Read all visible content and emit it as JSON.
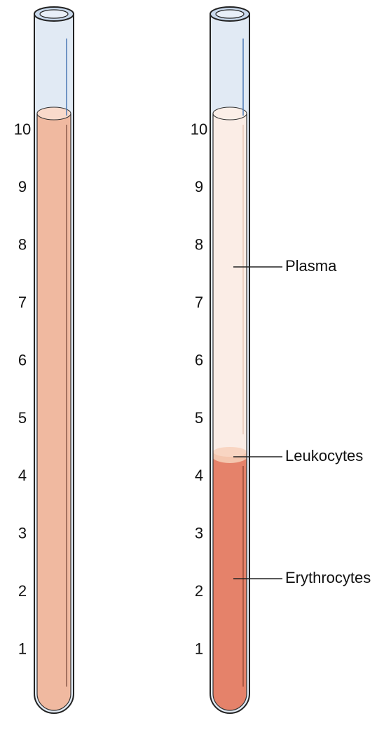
{
  "left_tube": {
    "scale": [
      10,
      9,
      8,
      7,
      6,
      5,
      4,
      3,
      2,
      1
    ]
  },
  "right_tube": {
    "scale": [
      10,
      9,
      8,
      7,
      6,
      5,
      4,
      3,
      2,
      1
    ],
    "labels": {
      "plasma": "Plasma",
      "leukocytes": "Leukocytes",
      "erythrocytes": "Erythrocytes"
    }
  }
}
